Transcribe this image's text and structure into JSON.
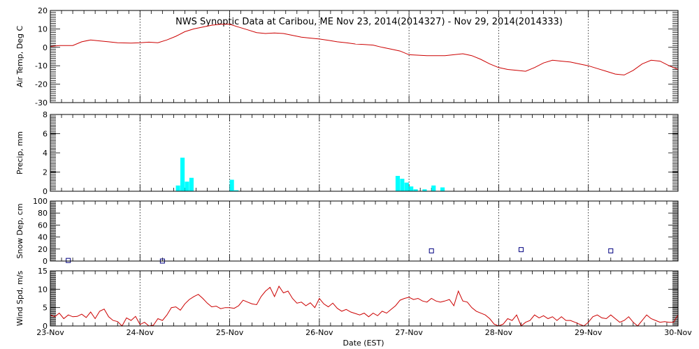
{
  "chart_data": {
    "type": "multi-panel time series",
    "title": "NWS Synoptic Data at Caribou, ME   Nov 23, 2014(2014327) - Nov 29, 2014(2014333)",
    "xlabel": "Date (EST)",
    "x_ticks": [
      "23-Nov",
      "24-Nov",
      "25-Nov",
      "26-Nov",
      "27-Nov",
      "28-Nov",
      "29-Nov",
      "30-Nov"
    ],
    "xlim_days": [
      0,
      7
    ],
    "panels": [
      {
        "ylabel": "Air Temp, Deg C",
        "type": "line",
        "color": "#cc0000",
        "ylim": [
          -30,
          20
        ],
        "yticks": [
          20,
          10,
          0,
          -10,
          -20,
          -30
        ],
        "series": [
          [
            0,
            0.5
          ],
          [
            0.1,
            1
          ],
          [
            0.25,
            1
          ],
          [
            0.35,
            3
          ],
          [
            0.45,
            4
          ],
          [
            0.55,
            3.5
          ],
          [
            0.65,
            3
          ],
          [
            0.75,
            2.5
          ],
          [
            0.9,
            2.3
          ],
          [
            1.0,
            2.5
          ],
          [
            1.1,
            2.8
          ],
          [
            1.2,
            2.5
          ],
          [
            1.3,
            4
          ],
          [
            1.4,
            6
          ],
          [
            1.5,
            8.5
          ],
          [
            1.6,
            10
          ],
          [
            1.7,
            11
          ],
          [
            1.8,
            12
          ],
          [
            1.9,
            12.5
          ],
          [
            2.0,
            12.5
          ],
          [
            2.1,
            11
          ],
          [
            2.2,
            9.5
          ],
          [
            2.3,
            8
          ],
          [
            2.4,
            7.5
          ],
          [
            2.5,
            7.8
          ],
          [
            2.6,
            7.5
          ],
          [
            2.7,
            6.5
          ],
          [
            2.8,
            5.5
          ],
          [
            2.9,
            5
          ],
          [
            3.0,
            4.5
          ],
          [
            3.1,
            3.8
          ],
          [
            3.2,
            3
          ],
          [
            3.3,
            2.5
          ],
          [
            3.4,
            1.8
          ],
          [
            3.5,
            1.5
          ],
          [
            3.6,
            1.2
          ],
          [
            3.7,
            0
          ],
          [
            3.8,
            -1
          ],
          [
            3.9,
            -2
          ],
          [
            4.0,
            -4
          ],
          [
            4.2,
            -4.5
          ],
          [
            4.4,
            -4.5
          ],
          [
            4.5,
            -4
          ],
          [
            4.6,
            -3.5
          ],
          [
            4.7,
            -4.5
          ],
          [
            4.8,
            -6.5
          ],
          [
            4.9,
            -9
          ],
          [
            5.0,
            -11
          ],
          [
            5.1,
            -12
          ],
          [
            5.2,
            -12.5
          ],
          [
            5.3,
            -13
          ],
          [
            5.4,
            -11
          ],
          [
            5.5,
            -8.5
          ],
          [
            5.6,
            -7
          ],
          [
            5.7,
            -7.5
          ],
          [
            5.8,
            -8
          ],
          [
            5.9,
            -9
          ],
          [
            6.0,
            -10
          ],
          [
            6.1,
            -11.5
          ],
          [
            6.2,
            -13
          ],
          [
            6.3,
            -14.5
          ],
          [
            6.4,
            -15
          ],
          [
            6.5,
            -12.5
          ],
          [
            6.6,
            -9
          ],
          [
            6.7,
            -7
          ],
          [
            6.8,
            -7.5
          ],
          [
            6.9,
            -10
          ],
          [
            7.0,
            -12
          ]
        ]
      },
      {
        "ylabel": "Precip, mm",
        "type": "bar",
        "color": "#00ffff",
        "ylim": [
          0,
          8
        ],
        "yticks": [
          8,
          6,
          4,
          2,
          0
        ],
        "series": [
          [
            1.4,
            0.6
          ],
          [
            1.45,
            3.5
          ],
          [
            1.5,
            1
          ],
          [
            1.55,
            1.4
          ],
          [
            2.0,
            1.2
          ],
          [
            2.05,
            0.1
          ],
          [
            3.85,
            1.6
          ],
          [
            3.9,
            1.3
          ],
          [
            3.95,
            0.9
          ],
          [
            4.0,
            0.5
          ],
          [
            4.05,
            0.2
          ],
          [
            4.15,
            0.2
          ],
          [
            4.25,
            0.6
          ],
          [
            4.35,
            0.4
          ]
        ]
      },
      {
        "ylabel": "Snow Dep, cm",
        "type": "scatter",
        "color": "#000080",
        "ylim": [
          0,
          100
        ],
        "yticks": [
          100,
          80,
          60,
          40,
          20,
          0
        ],
        "series": [
          [
            0.2,
            1
          ],
          [
            1.25,
            0
          ],
          [
            4.25,
            17
          ],
          [
            5.25,
            19
          ],
          [
            6.25,
            17
          ]
        ]
      },
      {
        "ylabel": "Wind Spd, m/s",
        "type": "line",
        "color": "#cc0000",
        "ylim": [
          0,
          15
        ],
        "yticks": [
          15,
          10,
          5,
          0
        ],
        "series": [
          [
            0,
            3
          ],
          [
            0.05,
            2.5
          ],
          [
            0.1,
            3.5
          ],
          [
            0.15,
            2
          ],
          [
            0.2,
            3
          ],
          [
            0.25,
            2.5
          ],
          [
            0.3,
            2.6
          ],
          [
            0.35,
            3.2
          ],
          [
            0.4,
            2.3
          ],
          [
            0.45,
            3.8
          ],
          [
            0.5,
            2
          ],
          [
            0.55,
            4
          ],
          [
            0.6,
            4.6
          ],
          [
            0.65,
            2.5
          ],
          [
            0.7,
            1.5
          ],
          [
            0.75,
            1.2
          ],
          [
            0.8,
            0
          ],
          [
            0.85,
            2.2
          ],
          [
            0.9,
            1.5
          ],
          [
            0.95,
            2.6
          ],
          [
            1.0,
            0.4
          ],
          [
            1.05,
            1
          ],
          [
            1.1,
            0
          ],
          [
            1.15,
            0.2
          ],
          [
            1.2,
            2
          ],
          [
            1.25,
            1.5
          ],
          [
            1.3,
            3
          ],
          [
            1.35,
            5
          ],
          [
            1.4,
            5.2
          ],
          [
            1.45,
            4.3
          ],
          [
            1.5,
            6
          ],
          [
            1.55,
            7.2
          ],
          [
            1.6,
            8
          ],
          [
            1.65,
            8.6
          ],
          [
            1.7,
            7.5
          ],
          [
            1.75,
            6.2
          ],
          [
            1.8,
            5.2
          ],
          [
            1.85,
            5.4
          ],
          [
            1.9,
            4.7
          ],
          [
            1.95,
            5
          ],
          [
            2.0,
            5
          ],
          [
            2.05,
            4.8
          ],
          [
            2.1,
            5.5
          ],
          [
            2.15,
            7
          ],
          [
            2.2,
            6.5
          ],
          [
            2.25,
            6
          ],
          [
            2.3,
            5.8
          ],
          [
            2.35,
            8
          ],
          [
            2.4,
            9.5
          ],
          [
            2.45,
            10.5
          ],
          [
            2.5,
            8
          ],
          [
            2.55,
            10.8
          ],
          [
            2.6,
            9
          ],
          [
            2.65,
            9.5
          ],
          [
            2.7,
            7.5
          ],
          [
            2.75,
            6.2
          ],
          [
            2.8,
            6.5
          ],
          [
            2.85,
            5.5
          ],
          [
            2.9,
            6.3
          ],
          [
            2.95,
            5
          ],
          [
            3.0,
            7.5
          ],
          [
            3.05,
            6
          ],
          [
            3.1,
            5.2
          ],
          [
            3.15,
            6.2
          ],
          [
            3.2,
            4.8
          ],
          [
            3.25,
            4
          ],
          [
            3.3,
            4.5
          ],
          [
            3.35,
            3.8
          ],
          [
            3.4,
            3.4
          ],
          [
            3.45,
            3
          ],
          [
            3.5,
            3.5
          ],
          [
            3.55,
            2.5
          ],
          [
            3.6,
            3.5
          ],
          [
            3.65,
            2.8
          ],
          [
            3.7,
            4
          ],
          [
            3.75,
            3.5
          ],
          [
            3.8,
            4.5
          ],
          [
            3.85,
            5.5
          ],
          [
            3.9,
            7
          ],
          [
            3.95,
            7.5
          ],
          [
            4.0,
            7.8
          ],
          [
            4.05,
            7.2
          ],
          [
            4.1,
            7.5
          ],
          [
            4.15,
            6.8
          ],
          [
            4.2,
            6.5
          ],
          [
            4.25,
            7.5
          ],
          [
            4.3,
            6.8
          ],
          [
            4.35,
            6.5
          ],
          [
            4.4,
            6.8
          ],
          [
            4.45,
            7.2
          ],
          [
            4.5,
            5.5
          ],
          [
            4.55,
            9.5
          ],
          [
            4.6,
            6.8
          ],
          [
            4.65,
            6.5
          ],
          [
            4.7,
            5
          ],
          [
            4.75,
            4
          ],
          [
            4.8,
            3.5
          ],
          [
            4.85,
            3
          ],
          [
            4.9,
            2
          ],
          [
            4.95,
            0.5
          ],
          [
            5.0,
            0
          ],
          [
            5.05,
            0.5
          ],
          [
            5.1,
            2
          ],
          [
            5.15,
            1.5
          ],
          [
            5.2,
            3
          ],
          [
            5.25,
            0
          ],
          [
            5.3,
            1
          ],
          [
            5.35,
            1.5
          ],
          [
            5.4,
            3
          ],
          [
            5.45,
            2.2
          ],
          [
            5.5,
            2.8
          ],
          [
            5.55,
            2
          ],
          [
            5.6,
            2.5
          ],
          [
            5.65,
            1.5
          ],
          [
            5.7,
            2.5
          ],
          [
            5.75,
            1.5
          ],
          [
            5.8,
            1.5
          ],
          [
            5.85,
            1
          ],
          [
            5.9,
            0.5
          ],
          [
            5.95,
            0
          ],
          [
            6.0,
            1
          ],
          [
            6.05,
            2.5
          ],
          [
            6.1,
            3
          ],
          [
            6.15,
            2.2
          ],
          [
            6.2,
            2
          ],
          [
            6.25,
            3
          ],
          [
            6.3,
            2
          ],
          [
            6.35,
            1
          ],
          [
            6.4,
            1.5
          ],
          [
            6.45,
            2.5
          ],
          [
            6.5,
            1
          ],
          [
            6.55,
            0
          ],
          [
            6.6,
            1.5
          ],
          [
            6.65,
            3
          ],
          [
            6.7,
            2
          ],
          [
            6.75,
            1.5
          ],
          [
            6.8,
            1
          ],
          [
            6.85,
            1.2
          ],
          [
            6.9,
            1
          ],
          [
            6.95,
            1
          ],
          [
            7.0,
            3
          ]
        ]
      }
    ]
  }
}
